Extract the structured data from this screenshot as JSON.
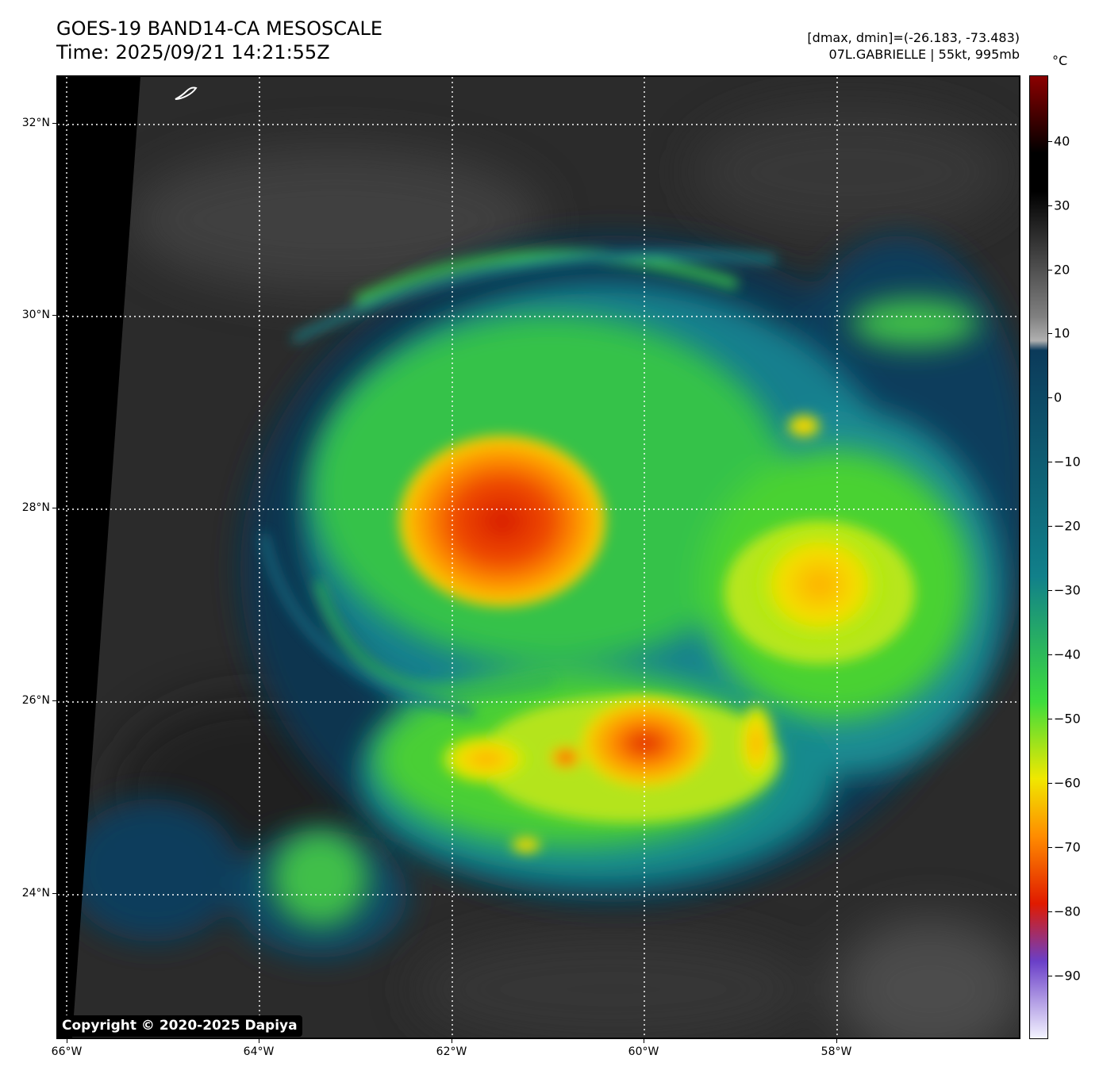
{
  "header": {
    "title_line1": "GOES-19 BAND14-CA MESOSCALE",
    "title_line2": "Time: 2025/09/21 14:21:55Z",
    "stats_line": "[dmax, dmin]=(-26.183, -73.483)",
    "storm_line": "07L.GABRIELLE | 55kt, 995mb"
  },
  "map": {
    "lat_labels": [
      "32°N",
      "30°N",
      "28°N",
      "26°N",
      "24°N"
    ],
    "lon_labels": [
      "66°W",
      "64°W",
      "62°W",
      "60°W",
      "58°W"
    ]
  },
  "colorbar": {
    "unit": "°C",
    "tick_labels": [
      "40",
      "30",
      "20",
      "10",
      "0",
      "−10",
      "−20",
      "−30",
      "−40",
      "−50",
      "−60",
      "−70",
      "−80",
      "−90"
    ],
    "colors": {
      "warm_top": "#8b0000",
      "black": "#000000",
      "gray_mid": "#808080",
      "blue_dark": "#0b3a5a",
      "teal": "#11808a",
      "green": "#3ddc3d",
      "yellow": "#f0e800",
      "orange": "#ff8c00",
      "red": "#e01a00",
      "purple": "#6a3fc8",
      "white_bottom": "#f4f4ff"
    }
  },
  "footer": {
    "copyright": "Copyright © 2020-2025 Dapiya"
  }
}
